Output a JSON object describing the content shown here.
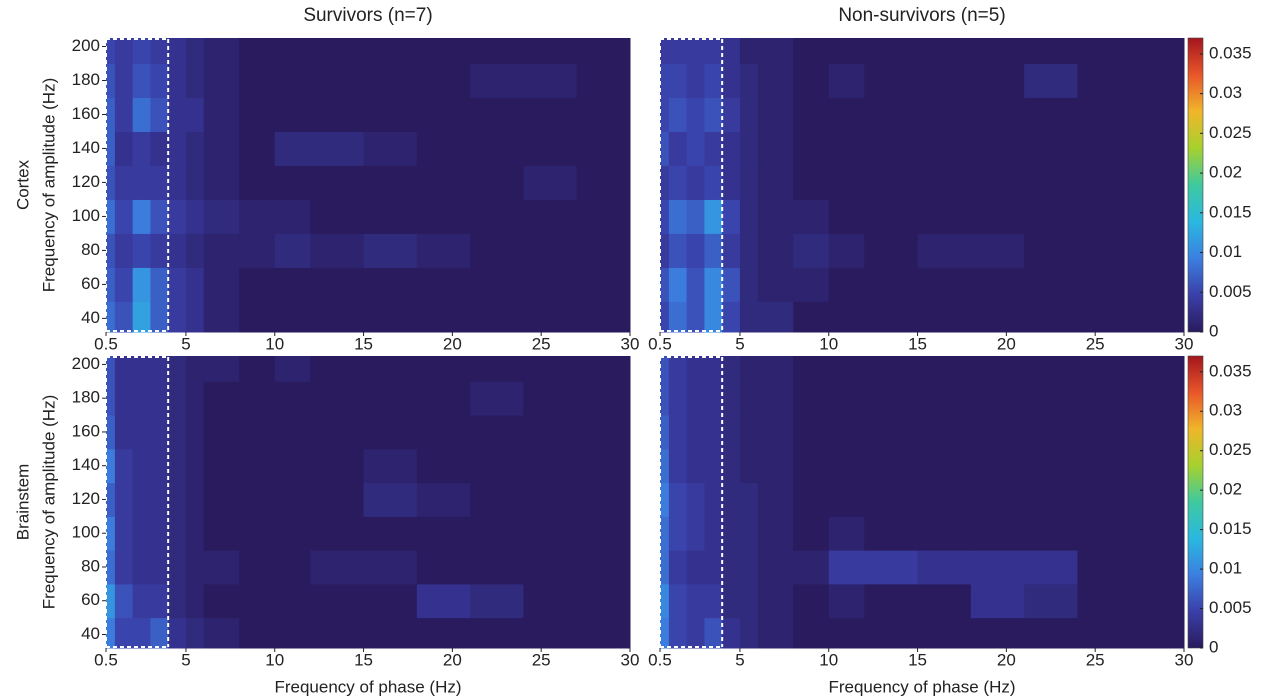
{
  "chart_data": [
    {
      "type": "heatmap",
      "title": "Survivors (n=7)",
      "row_label": "Cortex",
      "ylabel": "Frequency of amplitude (Hz)",
      "xlim": [
        0.5,
        30
      ],
      "ylim": [
        32,
        205
      ],
      "xticks": [
        0.5,
        5,
        10,
        15,
        20,
        25,
        30
      ],
      "yticks": [
        40,
        60,
        80,
        100,
        120,
        140,
        160,
        180,
        200
      ],
      "xbins": [
        0.5,
        1,
        2,
        3,
        4,
        5,
        6,
        8,
        10,
        12,
        15,
        18,
        21,
        24,
        27,
        30
      ],
      "ybins": [
        32,
        50,
        70,
        90,
        110,
        130,
        150,
        170,
        190,
        205
      ],
      "highlight_x": [
        0.5,
        4
      ],
      "clim": [
        0,
        0.037
      ],
      "colormap": [
        "#2a1b5e",
        "#3a3fa8",
        "#3b7fe0",
        "#2ab8e0",
        "#3ec9a0",
        "#a6d12e",
        "#f0b62a",
        "#e8562a",
        "#a4161e"
      ],
      "z": [
        [
          0.008,
          0.006,
          0.012,
          0.007,
          0.004,
          0.003,
          0.001,
          0,
          0,
          0,
          0,
          0,
          0,
          0,
          0
        ],
        [
          0.007,
          0.005,
          0.011,
          0.007,
          0.004,
          0.003,
          0.001,
          0,
          0,
          0,
          0,
          0,
          0,
          0,
          0
        ],
        [
          0.006,
          0.004,
          0.005,
          0.004,
          0.003,
          0.002,
          0.001,
          0.001,
          0.002,
          0.001,
          0.002,
          0.001,
          0,
          0,
          0
        ],
        [
          0.008,
          0.005,
          0.009,
          0.006,
          0.004,
          0.003,
          0.002,
          0.001,
          0.001,
          0,
          0,
          0,
          0,
          0,
          0
        ],
        [
          0.006,
          0.004,
          0.004,
          0.004,
          0.003,
          0.002,
          0.001,
          0,
          0,
          0,
          0,
          0,
          0,
          0.001,
          0
        ],
        [
          0.007,
          0.003,
          0.004,
          0.003,
          0.003,
          0.002,
          0.001,
          0,
          0.002,
          0.002,
          0.001,
          0,
          0,
          0,
          0
        ],
        [
          0.007,
          0.004,
          0.008,
          0.006,
          0.003,
          0.003,
          0.001,
          0,
          0,
          0,
          0,
          0,
          0,
          0,
          0
        ],
        [
          0.006,
          0.004,
          0.006,
          0.005,
          0.003,
          0.002,
          0.001,
          0,
          0,
          0,
          0,
          0,
          0.001,
          0.001,
          0
        ],
        [
          0.005,
          0.004,
          0.005,
          0.004,
          0.003,
          0.002,
          0.001,
          0,
          0,
          0,
          0,
          0,
          0,
          0,
          0
        ]
      ]
    },
    {
      "type": "heatmap",
      "title": "Non-survivors (n=5)",
      "xlim": [
        0.5,
        30
      ],
      "ylim": [
        32,
        205
      ],
      "xticks": [
        0.5,
        5,
        10,
        15,
        20,
        25,
        30
      ],
      "xbins": [
        0.5,
        1,
        2,
        3,
        4,
        5,
        6,
        8,
        10,
        12,
        15,
        18,
        21,
        24,
        27,
        30
      ],
      "ybins": [
        32,
        50,
        70,
        90,
        110,
        130,
        150,
        170,
        190,
        205
      ],
      "highlight_x": [
        0.5,
        4
      ],
      "clim": [
        0,
        0.037
      ],
      "cticks": [
        0,
        0.005,
        0.01,
        0.015,
        0.02,
        0.025,
        0.03,
        0.035
      ],
      "colormap": [
        "#2a1b5e",
        "#3a3fa8",
        "#3b7fe0",
        "#2ab8e0",
        "#3ec9a0",
        "#a6d12e",
        "#f0b62a",
        "#e8562a",
        "#a4161e"
      ],
      "z": [
        [
          0.005,
          0.008,
          0.006,
          0.01,
          0.005,
          0.002,
          0.002,
          0,
          0,
          0,
          0,
          0,
          0,
          0,
          0
        ],
        [
          0.006,
          0.009,
          0.006,
          0.01,
          0.006,
          0.002,
          0.001,
          0.001,
          0,
          0,
          0,
          0,
          0,
          0,
          0
        ],
        [
          0.004,
          0.006,
          0.005,
          0.007,
          0.004,
          0.002,
          0.001,
          0.002,
          0.001,
          0,
          0.001,
          0.001,
          0,
          0,
          0
        ],
        [
          0.005,
          0.008,
          0.007,
          0.011,
          0.005,
          0.002,
          0.001,
          0.001,
          0,
          0,
          0,
          0,
          0,
          0,
          0
        ],
        [
          0.004,
          0.005,
          0.004,
          0.005,
          0.003,
          0.002,
          0.001,
          0,
          0,
          0,
          0,
          0,
          0,
          0,
          0
        ],
        [
          0.006,
          0.004,
          0.005,
          0.004,
          0.003,
          0.002,
          0.001,
          0,
          0,
          0,
          0,
          0,
          0,
          0,
          0
        ],
        [
          0.005,
          0.006,
          0.005,
          0.006,
          0.004,
          0.002,
          0.001,
          0,
          0,
          0,
          0,
          0,
          0,
          0,
          0
        ],
        [
          0.005,
          0.005,
          0.004,
          0.005,
          0.003,
          0.002,
          0.001,
          0,
          0.001,
          0,
          0,
          0,
          0.002,
          0,
          0
        ],
        [
          0.004,
          0.004,
          0.004,
          0.004,
          0.003,
          0.001,
          0.001,
          0,
          0,
          0,
          0,
          0,
          0,
          0,
          0
        ]
      ]
    },
    {
      "type": "heatmap",
      "row_label": "Brainstem",
      "ylabel": "Frequency of amplitude (Hz)",
      "xlabel": "Frequency of phase (Hz)",
      "xlim": [
        0.5,
        30
      ],
      "ylim": [
        32,
        205
      ],
      "xticks": [
        0.5,
        5,
        10,
        15,
        20,
        25,
        30
      ],
      "yticks": [
        40,
        60,
        80,
        100,
        120,
        140,
        160,
        180,
        200
      ],
      "xbins": [
        0.5,
        1,
        2,
        3,
        4,
        5,
        6,
        8,
        10,
        12,
        15,
        18,
        21,
        24,
        27,
        30
      ],
      "ybins": [
        32,
        50,
        70,
        90,
        110,
        130,
        150,
        170,
        190,
        205
      ],
      "highlight_x": [
        0.5,
        4
      ],
      "clim": [
        0,
        0.037
      ],
      "colormap": [
        "#2a1b5e",
        "#3a3fa8",
        "#3b7fe0",
        "#2ab8e0",
        "#3ec9a0",
        "#a6d12e",
        "#f0b62a",
        "#e8562a",
        "#a4161e"
      ],
      "z": [
        [
          0.009,
          0.005,
          0.005,
          0.007,
          0.003,
          0.002,
          0.001,
          0,
          0,
          0,
          0,
          0,
          0,
          0,
          0
        ],
        [
          0.011,
          0.006,
          0.004,
          0.004,
          0.002,
          0.001,
          0,
          0,
          0,
          0,
          0,
          0.003,
          0.002,
          0,
          0
        ],
        [
          0.008,
          0.004,
          0.003,
          0.003,
          0.002,
          0.001,
          0.001,
          0,
          0,
          0.001,
          0.001,
          0,
          0,
          0,
          0
        ],
        [
          0.009,
          0.004,
          0.003,
          0.003,
          0.002,
          0.001,
          0,
          0,
          0,
          0,
          0,
          0,
          0,
          0,
          0
        ],
        [
          0.007,
          0.004,
          0.003,
          0.003,
          0.002,
          0.001,
          0,
          0,
          0,
          0,
          0.002,
          0.001,
          0,
          0,
          0
        ],
        [
          0.009,
          0.004,
          0.003,
          0.003,
          0.002,
          0.001,
          0,
          0,
          0,
          0,
          0.001,
          0,
          0,
          0,
          0
        ],
        [
          0.007,
          0.003,
          0.003,
          0.003,
          0.002,
          0.001,
          0,
          0,
          0,
          0,
          0,
          0,
          0,
          0,
          0
        ],
        [
          0.006,
          0.003,
          0.003,
          0.003,
          0.002,
          0.001,
          0,
          0,
          0,
          0,
          0,
          0,
          0.001,
          0,
          0
        ],
        [
          0.006,
          0.003,
          0.003,
          0.003,
          0.002,
          0.001,
          0.001,
          0,
          0.001,
          0,
          0,
          0,
          0,
          0,
          0
        ]
      ]
    },
    {
      "type": "heatmap",
      "xlabel": "Frequency of phase (Hz)",
      "xlim": [
        0.5,
        30
      ],
      "ylim": [
        32,
        205
      ],
      "xticks": [
        0.5,
        5,
        10,
        15,
        20,
        25,
        30
      ],
      "xbins": [
        0.5,
        1,
        2,
        3,
        4,
        5,
        6,
        8,
        10,
        12,
        15,
        18,
        21,
        24,
        27,
        30
      ],
      "ybins": [
        32,
        50,
        70,
        90,
        110,
        130,
        150,
        170,
        190,
        205
      ],
      "highlight_x": [
        0.5,
        4
      ],
      "clim": [
        0,
        0.037
      ],
      "cticks": [
        0,
        0.005,
        0.01,
        0.015,
        0.02,
        0.025,
        0.03,
        0.035
      ],
      "colormap": [
        "#2a1b5e",
        "#3a3fa8",
        "#3b7fe0",
        "#2ab8e0",
        "#3ec9a0",
        "#a6d12e",
        "#f0b62a",
        "#e8562a",
        "#a4161e"
      ],
      "z": [
        [
          0.009,
          0.005,
          0.004,
          0.006,
          0.003,
          0.002,
          0.001,
          0,
          0,
          0,
          0,
          0,
          0,
          0,
          0
        ],
        [
          0.01,
          0.005,
          0.004,
          0.004,
          0.002,
          0.002,
          0.001,
          0,
          0.001,
          0,
          0,
          0.003,
          0.002,
          0,
          0
        ],
        [
          0.008,
          0.004,
          0.003,
          0.003,
          0.002,
          0.002,
          0.001,
          0.001,
          0.004,
          0.004,
          0.003,
          0.003,
          0.003,
          0,
          0
        ],
        [
          0.008,
          0.005,
          0.004,
          0.003,
          0.002,
          0.002,
          0.001,
          0,
          0.001,
          0,
          0,
          0,
          0,
          0,
          0
        ],
        [
          0.009,
          0.005,
          0.004,
          0.003,
          0.002,
          0.002,
          0.001,
          0,
          0,
          0,
          0,
          0,
          0,
          0,
          0
        ],
        [
          0.008,
          0.004,
          0.003,
          0.003,
          0.002,
          0.001,
          0.001,
          0,
          0,
          0,
          0,
          0,
          0,
          0,
          0
        ],
        [
          0.007,
          0.004,
          0.003,
          0.003,
          0.002,
          0.001,
          0.001,
          0,
          0,
          0,
          0,
          0,
          0,
          0,
          0
        ],
        [
          0.006,
          0.004,
          0.003,
          0.003,
          0.002,
          0.001,
          0.001,
          0,
          0,
          0,
          0,
          0,
          0,
          0,
          0
        ],
        [
          0.006,
          0.004,
          0.003,
          0.003,
          0.002,
          0.001,
          0.001,
          0,
          0,
          0,
          0,
          0,
          0,
          0,
          0
        ]
      ]
    }
  ]
}
